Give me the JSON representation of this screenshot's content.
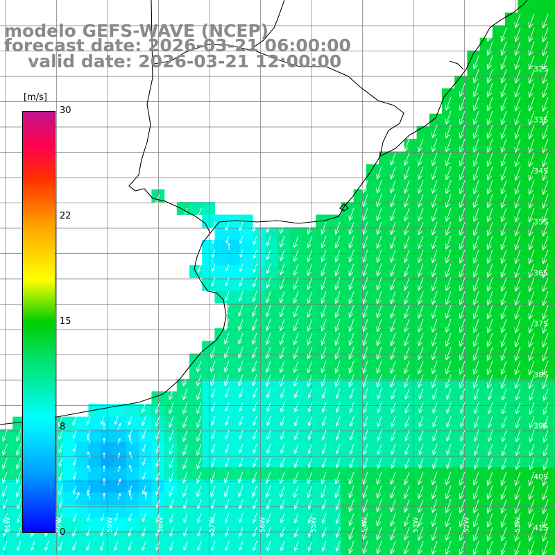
{
  "title": {
    "line1": "modelo GEFS-WAVE (NCEP)",
    "line2": "forecast date: 2026-03-21 06:00:00",
    "line3": "valid date: 2026-03-21 12:00:00"
  },
  "colorbar": {
    "unit": "[m/s]",
    "ticks": [
      "30",
      "22",
      "15",
      "8",
      "0"
    ]
  },
  "lat_labels": [
    "32S",
    "33S",
    "34S",
    "35S",
    "36S",
    "37S",
    "38S",
    "39S",
    "40S",
    "41S"
  ],
  "lon_labels": [
    "61W",
    "60W",
    "59W",
    "58W",
    "57W",
    "56W",
    "55W",
    "54W",
    "53W",
    "52W",
    "51W"
  ]
}
